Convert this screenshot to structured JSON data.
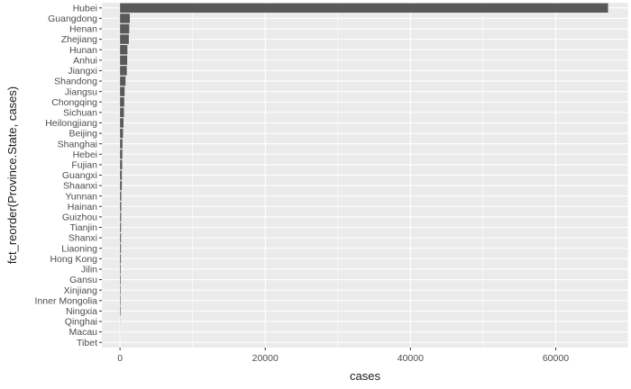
{
  "chart_data": {
    "type": "bar",
    "orientation": "horizontal",
    "title": "",
    "xlabel": "cases",
    "ylabel": "fct_reorder(Province.State, cases)",
    "xlim": [
      -2500,
      70000
    ],
    "x_ticks": [
      0,
      20000,
      40000,
      60000
    ],
    "x_tick_labels": [
      "0",
      "20000",
      "40000",
      "60000"
    ],
    "grid": true,
    "panel_background": "#ebebeb",
    "gridline_color": "#ffffff",
    "bar_color": "#595959",
    "categories": [
      "Hubei",
      "Guangdong",
      "Henan",
      "Zhejiang",
      "Hunan",
      "Anhui",
      "Jiangxi",
      "Shandong",
      "Jiangsu",
      "Chongqing",
      "Sichuan",
      "Heilongjiang",
      "Beijing",
      "Shanghai",
      "Hebei",
      "Fujian",
      "Guangxi",
      "Shaanxi",
      "Yunnan",
      "Hainan",
      "Guizhou",
      "Tianjin",
      "Shanxi",
      "Liaoning",
      "Hong Kong",
      "Jilin",
      "Gansu",
      "Xinjiang",
      "Inner Mongolia",
      "Ningxia",
      "Qinghai",
      "Macau",
      "Tibet"
    ],
    "values": [
      67217,
      1349,
      1272,
      1215,
      1018,
      990,
      935,
      758,
      631,
      576,
      539,
      481,
      414,
      339,
      318,
      296,
      252,
      245,
      174,
      168,
      146,
      136,
      133,
      125,
      115,
      93,
      91,
      76,
      75,
      75,
      18,
      10,
      1
    ]
  }
}
